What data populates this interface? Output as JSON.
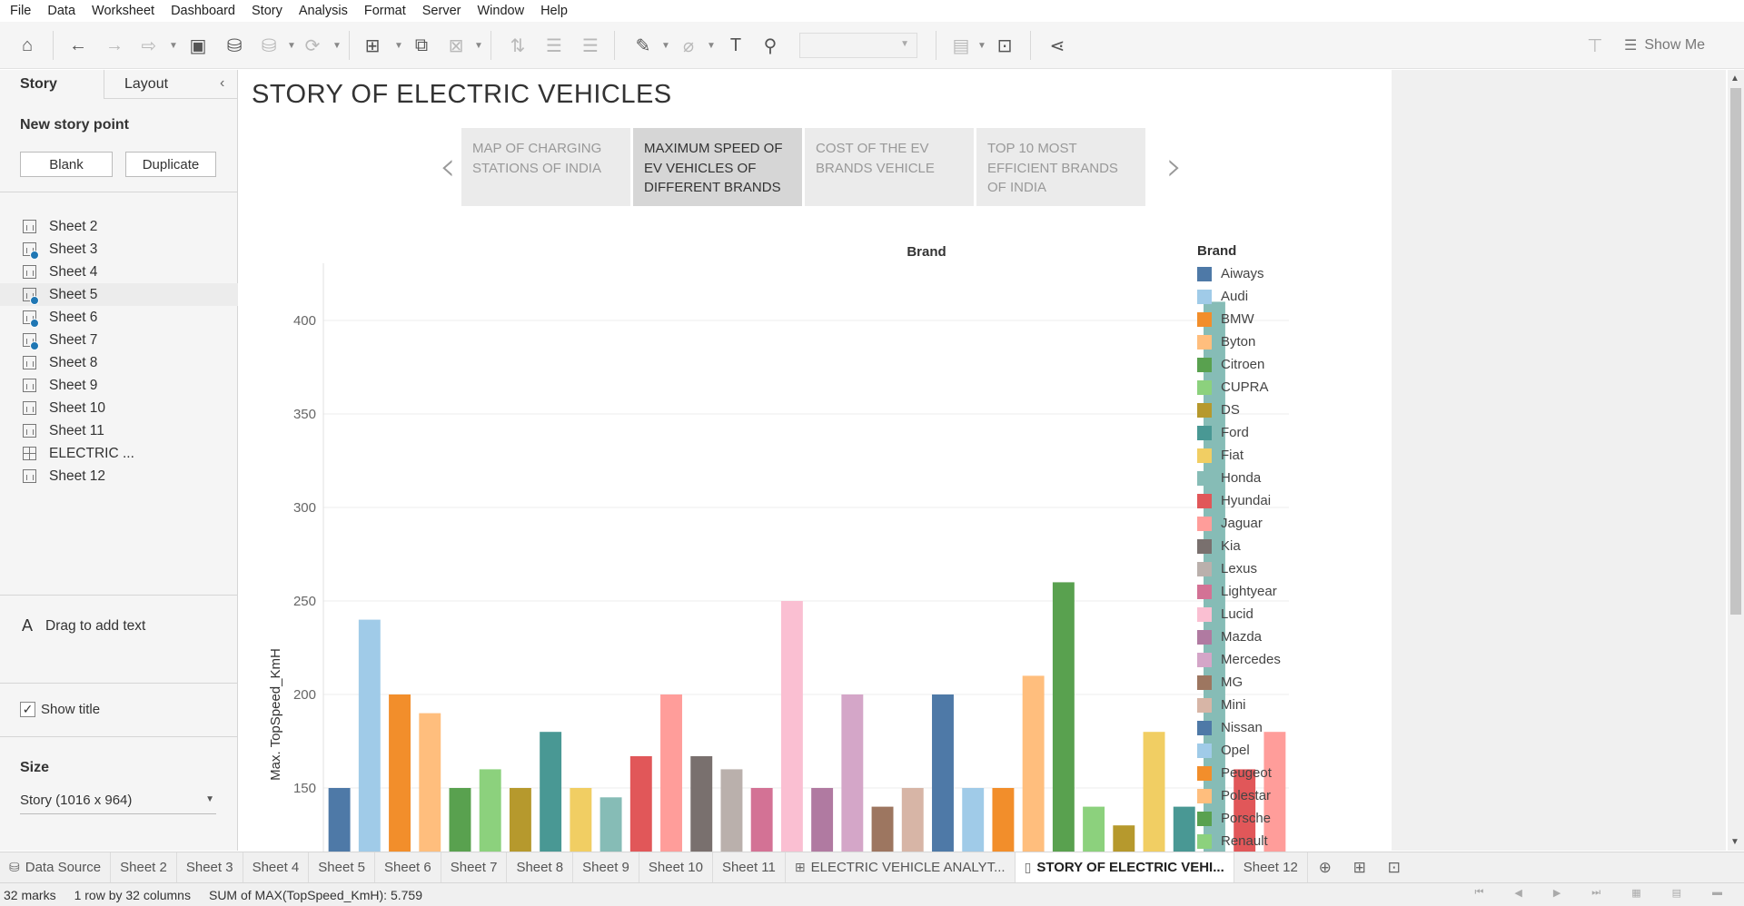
{
  "menu": [
    "File",
    "Data",
    "Worksheet",
    "Dashboard",
    "Story",
    "Analysis",
    "Format",
    "Server",
    "Window",
    "Help"
  ],
  "toolbar": {
    "show_me_label": "Show Me"
  },
  "left_panel": {
    "tabs": [
      "Story",
      "Layout"
    ],
    "new_story_point": "New story point",
    "blank_button": "Blank",
    "duplicate_button": "Duplicate",
    "sheets": [
      {
        "name": "Sheet 2",
        "check": false,
        "type": "sheet"
      },
      {
        "name": "Sheet 3",
        "check": true,
        "type": "sheet"
      },
      {
        "name": "Sheet 4",
        "check": false,
        "type": "sheet"
      },
      {
        "name": "Sheet 5",
        "check": true,
        "type": "sheet"
      },
      {
        "name": "Sheet 6",
        "check": true,
        "type": "sheet"
      },
      {
        "name": "Sheet 7",
        "check": true,
        "type": "sheet"
      },
      {
        "name": "Sheet 8",
        "check": false,
        "type": "sheet"
      },
      {
        "name": "Sheet 9",
        "check": false,
        "type": "sheet"
      },
      {
        "name": "Sheet 10",
        "check": false,
        "type": "sheet"
      },
      {
        "name": "Sheet 11",
        "check": false,
        "type": "sheet"
      },
      {
        "name": "ELECTRIC ...",
        "check": false,
        "type": "dashboard"
      },
      {
        "name": "Sheet 12",
        "check": false,
        "type": "sheet"
      }
    ],
    "drag_text": "Drag to add text",
    "show_title": "Show title",
    "size_label": "Size",
    "size_value": "Story (1016 x 964)"
  },
  "story": {
    "title": "STORY OF ELECTRIC VEHICLES",
    "points": [
      {
        "label": "MAP OF CHARGING STATIONS OF INDIA",
        "active": false
      },
      {
        "label": "MAXIMUM SPEED OF EV VEHICLES OF DIFFERENT BRANDS",
        "active": true
      },
      {
        "label": "COST OF THE EV BRANDS VEHICLE",
        "active": false
      },
      {
        "label": "TOP 10 MOST EFFICIENT BRANDS OF INDIA",
        "active": false
      }
    ]
  },
  "legend": {
    "title": "Brand",
    "items": [
      {
        "name": "Aiways",
        "color": "#4e79a7"
      },
      {
        "name": "Audi",
        "color": "#a0cbe8"
      },
      {
        "name": "BMW",
        "color": "#f28e2b"
      },
      {
        "name": "Byton",
        "color": "#ffbe7d"
      },
      {
        "name": "Citroen",
        "color": "#59a14f"
      },
      {
        "name": "CUPRA",
        "color": "#8cd17d"
      },
      {
        "name": "DS",
        "color": "#b6992d"
      },
      {
        "name": "Ford",
        "color": "#499894"
      },
      {
        "name": "Fiat",
        "color": "#f1ce63"
      },
      {
        "name": "Honda",
        "color": "#86bcb6"
      },
      {
        "name": "Hyundai",
        "color": "#e15759"
      },
      {
        "name": "Jaguar",
        "color": "#ff9d9a"
      },
      {
        "name": "Kia",
        "color": "#79706e"
      },
      {
        "name": "Lexus",
        "color": "#bab0ac"
      },
      {
        "name": "Lightyear",
        "color": "#d37295"
      },
      {
        "name": "Lucid",
        "color": "#fabfd2"
      },
      {
        "name": "Mazda",
        "color": "#b07aa1"
      },
      {
        "name": "Mercedes",
        "color": "#d4a6c8"
      },
      {
        "name": "MG",
        "color": "#9d7660"
      },
      {
        "name": "Mini",
        "color": "#d7b5a6"
      },
      {
        "name": "Nissan",
        "color": "#4e79a7"
      },
      {
        "name": "Opel",
        "color": "#a0cbe8"
      },
      {
        "name": "Peugeot",
        "color": "#f28e2b"
      },
      {
        "name": "Polestar",
        "color": "#ffbe7d"
      },
      {
        "name": "Porsche",
        "color": "#59a14f"
      },
      {
        "name": "Renault",
        "color": "#8cd17d"
      }
    ]
  },
  "chart_data": {
    "type": "bar",
    "title": "Brand",
    "xlabel": "",
    "ylabel": "Max. TopSpeed_KmH",
    "ylim": [
      120,
      420
    ],
    "yticks": [
      150,
      200,
      250,
      300,
      350,
      400
    ],
    "grid": true,
    "legend_placement": "right",
    "values": [
      150,
      240,
      200,
      190,
      150,
      160,
      150,
      180,
      150,
      145,
      167,
      200,
      167,
      160,
      150,
      250,
      150,
      200,
      140,
      150,
      200,
      150,
      150,
      210,
      260,
      140,
      130,
      180,
      140,
      410,
      160,
      180
    ],
    "colors": [
      "#4e79a7",
      "#a0cbe8",
      "#f28e2b",
      "#ffbe7d",
      "#59a14f",
      "#8cd17d",
      "#b6992d",
      "#499894",
      "#f1ce63",
      "#86bcb6",
      "#e15759",
      "#ff9d9a",
      "#79706e",
      "#bab0ac",
      "#d37295",
      "#fabfd2",
      "#b07aa1",
      "#d4a6c8",
      "#9d7660",
      "#d7b5a6",
      "#4e79a7",
      "#a0cbe8",
      "#f28e2b",
      "#ffbe7d",
      "#59a14f",
      "#8cd17d",
      "#b6992d",
      "#f1ce63",
      "#499894",
      "#86bcb6",
      "#e15759",
      "#ff9d9a"
    ]
  },
  "tabs": [
    {
      "label": "Data Source",
      "icon": "data-source-icon",
      "active": false
    },
    {
      "label": "Sheet 2",
      "active": false
    },
    {
      "label": "Sheet 3",
      "active": false
    },
    {
      "label": "Sheet 4",
      "active": false
    },
    {
      "label": "Sheet 5",
      "active": false
    },
    {
      "label": "Sheet 6",
      "active": false
    },
    {
      "label": "Sheet 7",
      "active": false
    },
    {
      "label": "Sheet 8",
      "active": false
    },
    {
      "label": "Sheet 9",
      "active": false
    },
    {
      "label": "Sheet 10",
      "active": false
    },
    {
      "label": "Sheet 11",
      "active": false
    },
    {
      "label": "ELECTRIC VEHICLE ANALYT...",
      "icon": "dashboard-icon",
      "active": false
    },
    {
      "label": "STORY OF ELECTRIC VEHI...",
      "icon": "story-icon",
      "active": true
    },
    {
      "label": "Sheet 12",
      "active": false
    }
  ],
  "status": {
    "marks": "32 marks",
    "dims": "1 row by 32 columns",
    "sum": "SUM of MAX(TopSpeed_KmH): 5.759"
  }
}
